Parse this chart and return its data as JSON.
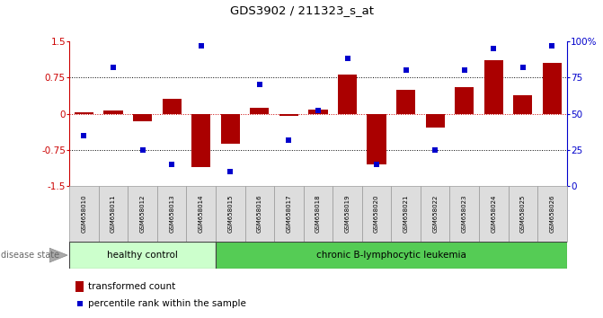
{
  "title": "GDS3902 / 211323_s_at",
  "samples": [
    "GSM658010",
    "GSM658011",
    "GSM658012",
    "GSM658013",
    "GSM658014",
    "GSM658015",
    "GSM658016",
    "GSM658017",
    "GSM658018",
    "GSM658019",
    "GSM658020",
    "GSM658021",
    "GSM658022",
    "GSM658023",
    "GSM658024",
    "GSM658025",
    "GSM658026"
  ],
  "bar_values": [
    0.02,
    0.07,
    -0.15,
    0.3,
    -1.1,
    -0.62,
    0.12,
    -0.05,
    0.08,
    0.82,
    -1.05,
    0.5,
    -0.28,
    0.55,
    1.1,
    0.38,
    1.05
  ],
  "dot_percentiles": [
    35,
    82,
    25,
    15,
    97,
    10,
    70,
    32,
    52,
    88,
    15,
    80,
    25,
    80,
    95,
    82,
    97
  ],
  "bar_color": "#aa0000",
  "dot_color": "#0000cc",
  "ylim_left": [
    -1.5,
    1.5
  ],
  "ylim_right": [
    0,
    100
  ],
  "yticks_left": [
    -1.5,
    -0.75,
    0.0,
    0.75,
    1.5
  ],
  "yticks_right": [
    0,
    25,
    50,
    75,
    100
  ],
  "ytick_labels_left": [
    "-1.5",
    "-0.75",
    "0",
    "0.75",
    "1.5"
  ],
  "ytick_labels_right": [
    "0",
    "25",
    "50",
    "75",
    "100%"
  ],
  "hlines": [
    0.75,
    0.0,
    -0.75
  ],
  "healthy_count": 5,
  "group1_label": "healthy control",
  "group2_label": "chronic B-lymphocytic leukemia",
  "disease_state_label": "disease state",
  "legend_bar_label": "transformed count",
  "legend_dot_label": "percentile rank within the sample",
  "bg_color": "#ffffff",
  "group1_color": "#ccffcc",
  "group2_color": "#55cc55",
  "left_axis_color": "#cc0000",
  "right_axis_color": "#0000cc",
  "zero_hline_color": "#cc0000",
  "other_hline_color": "#000000",
  "sample_box_color": "#dddddd",
  "sample_box_edge": "#999999"
}
